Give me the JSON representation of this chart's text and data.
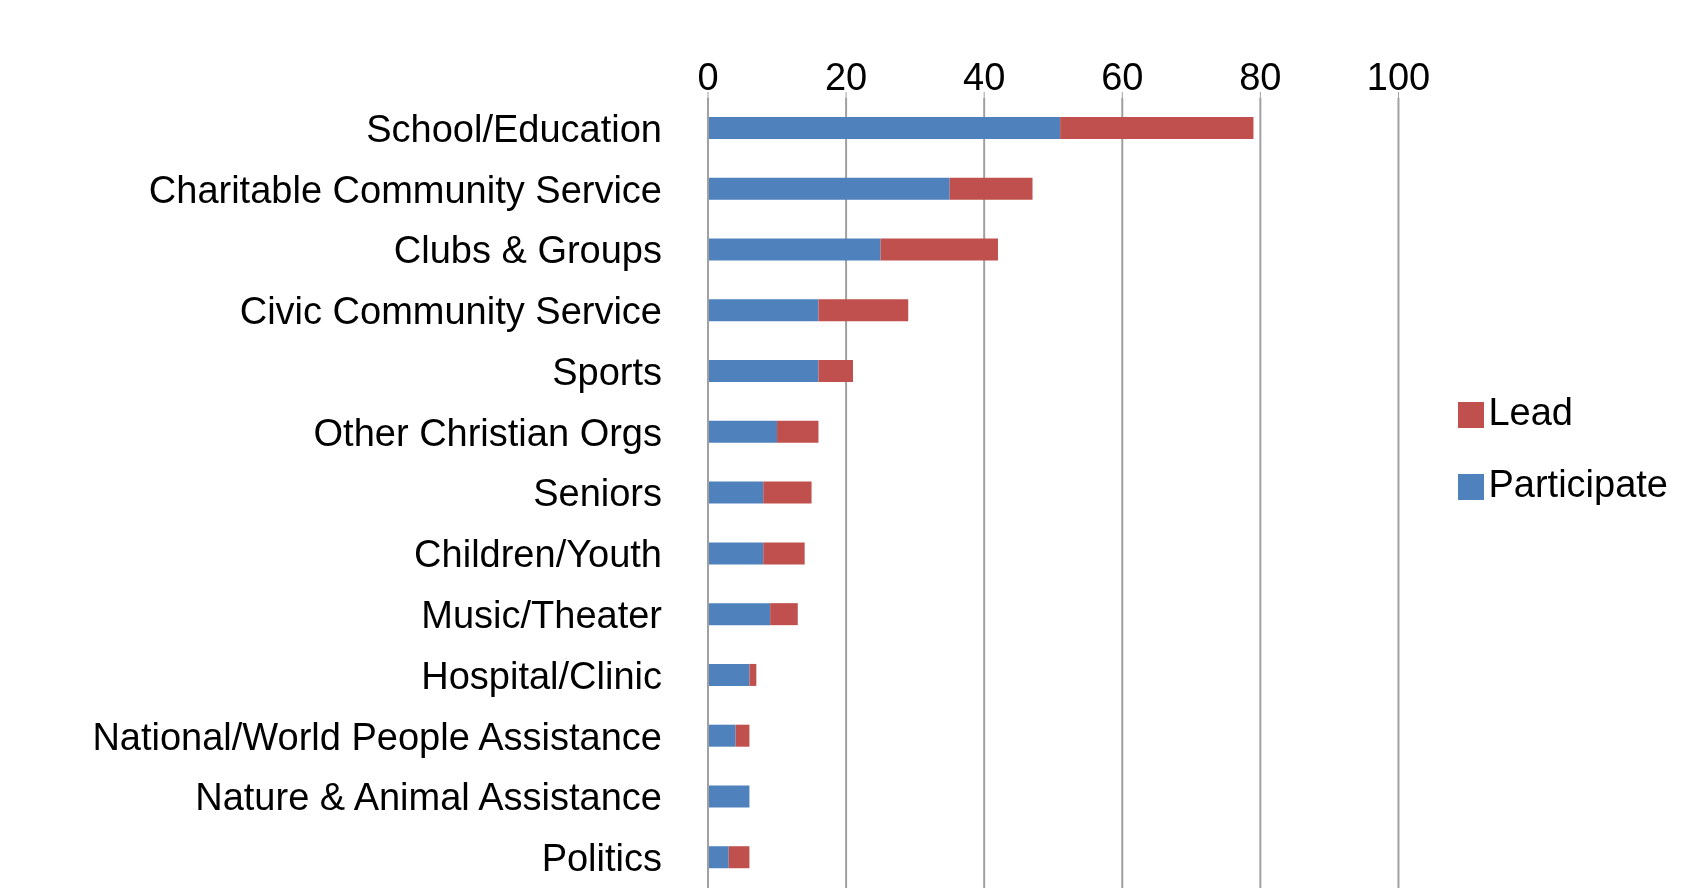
{
  "chart_data": {
    "type": "bar",
    "orientation": "horizontal",
    "stacked": true,
    "categories": [
      "School/Education",
      "Charitable Community Service",
      "Clubs & Groups",
      "Civic Community Service",
      "Sports",
      "Other Christian Orgs",
      "Seniors",
      "Children/Youth",
      "Music/Theater",
      "Hospital/Clinic",
      "National/World People Assistance",
      "Nature & Animal Assistance",
      "Politics"
    ],
    "series": [
      {
        "name": "Participate",
        "color": "#4f81bd",
        "values": [
          51,
          35,
          25,
          16,
          16,
          10,
          8,
          8,
          9,
          6,
          4,
          6,
          3
        ]
      },
      {
        "name": "Lead",
        "color": "#c0504d",
        "values": [
          28,
          12,
          17,
          13,
          5,
          6,
          7,
          6,
          4,
          1,
          2,
          0,
          3
        ]
      }
    ],
    "xlim": [
      0,
      100
    ],
    "xticks": [
      0,
      20,
      40,
      60,
      80,
      100
    ],
    "grid": "x",
    "legend": "right"
  }
}
